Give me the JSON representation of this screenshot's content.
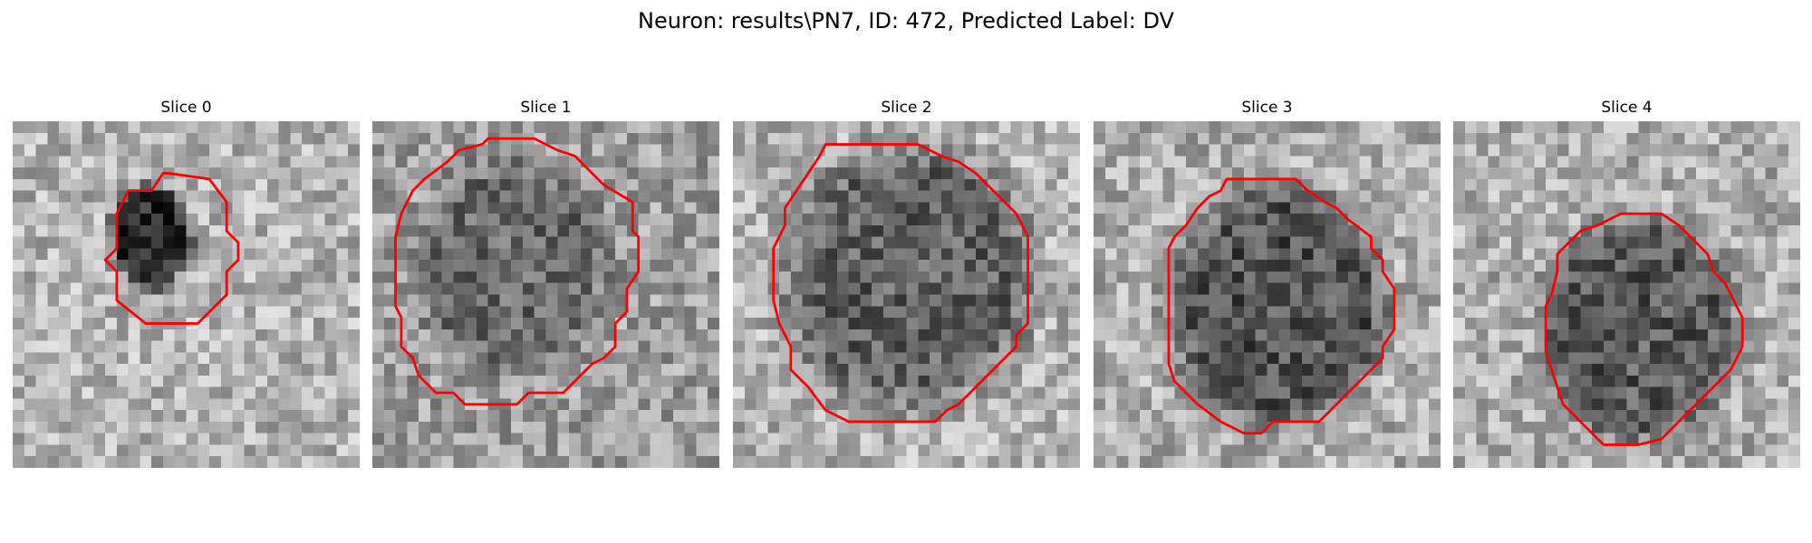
{
  "figure": {
    "title": "Neuron: results\\PN7, ID: 472, Predicted Label: DV"
  },
  "contour_color": "#ff0000",
  "slices": [
    {
      "label": "Slice 0"
    },
    {
      "label": "Slice 1"
    },
    {
      "label": "Slice 2"
    },
    {
      "label": "Slice 3"
    },
    {
      "label": "Slice 4"
    }
  ]
}
